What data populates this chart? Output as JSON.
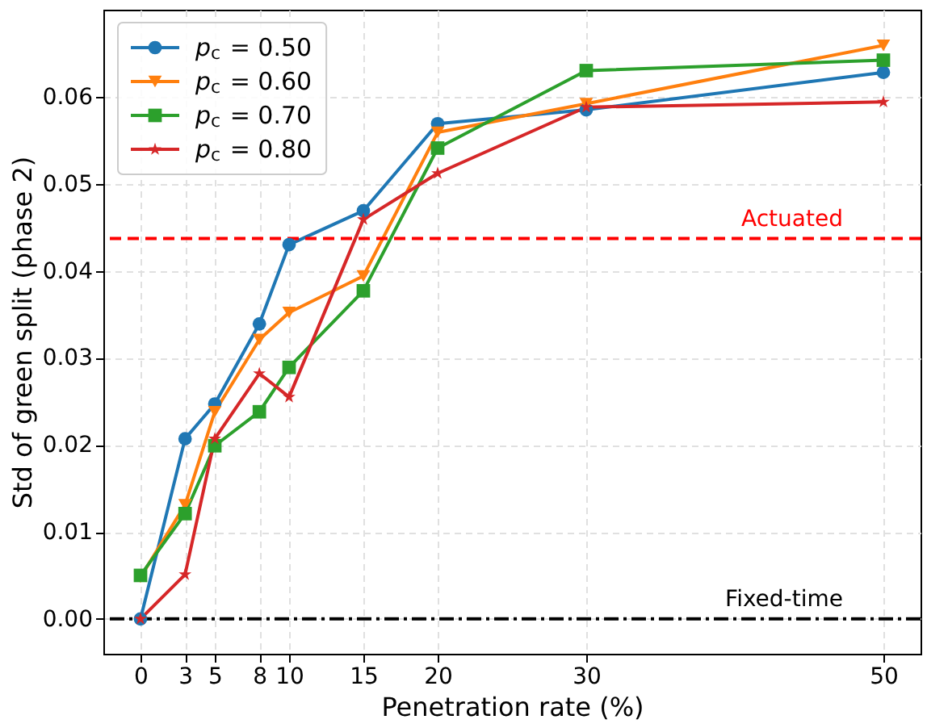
{
  "chart_data": {
    "type": "line",
    "xlabel": "Penetration rate (%)",
    "ylabel": "Std of green split (phase 2)",
    "x": [
      0,
      3,
      5,
      8,
      10,
      15,
      20,
      30,
      50
    ],
    "series": [
      {
        "name": "p$_{c}$ = 0.50",
        "color": "#1f77b4",
        "marker": "circle",
        "values": [
          0.0,
          0.0207,
          0.0247,
          0.0339,
          0.043,
          0.0469,
          0.0569,
          0.0585,
          0.0628
        ]
      },
      {
        "name": "p$_{c}$ = 0.60",
        "color": "#ff7f0e",
        "marker": "triangle-down",
        "values": [
          0.0048,
          0.0131,
          0.0238,
          0.0321,
          0.0352,
          0.0394,
          0.0559,
          0.0592,
          0.0659
        ]
      },
      {
        "name": "p$_{c}$ = 0.70",
        "color": "#2ca02c",
        "marker": "square",
        "values": [
          0.005,
          0.0121,
          0.0199,
          0.0238,
          0.0289,
          0.0377,
          0.0541,
          0.063,
          0.0642
        ]
      },
      {
        "name": "p$_{c}$ = 0.80",
        "color": "#d62728",
        "marker": "star",
        "values": [
          0.0,
          0.0051,
          0.0207,
          0.0282,
          0.0255,
          0.0459,
          0.0512,
          0.0588,
          0.0594
        ]
      }
    ],
    "ref_lines": [
      {
        "axis": "y",
        "value": 0.0437,
        "label": "Actuated",
        "color": "#ff0000",
        "line_style": "dashed"
      },
      {
        "axis": "y",
        "value": 0.0,
        "label": "Fixed-time",
        "color": "#000000",
        "line_style": "dashdot"
      }
    ],
    "xlim": [
      -2.5,
      52.5
    ],
    "xticks": [
      0,
      3,
      5,
      8,
      10,
      15,
      20,
      30,
      50
    ],
    "ylim": [
      -0.004,
      0.07
    ],
    "yticks": [
      {
        "value": 0,
        "label": "0.00"
      },
      0.01,
      0.02,
      0.03,
      0.04,
      0.05,
      0.06
    ],
    "grid": true,
    "legend": "top left",
    "line_style": "solid"
  }
}
